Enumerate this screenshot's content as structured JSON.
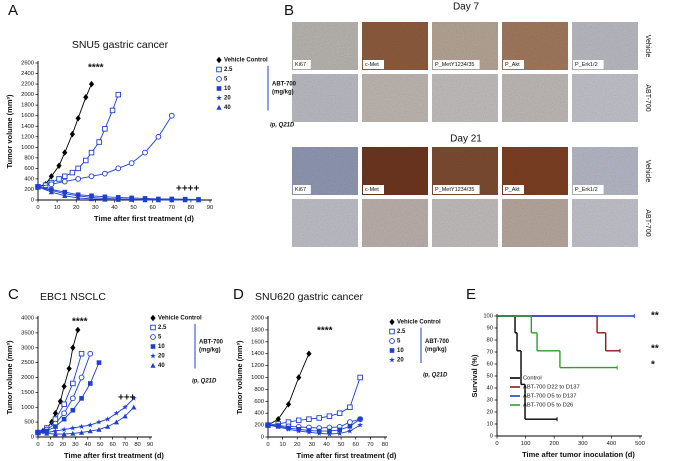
{
  "chart_data": [
    {
      "panel": "A",
      "type": "line",
      "title": "SNU5 gastric cancer",
      "x_label": "Time after first treatment (d)",
      "y_label": "Tumor volume (mm³)",
      "xlim": [
        0,
        90
      ],
      "xticks": [
        0,
        10,
        20,
        30,
        40,
        50,
        60,
        70,
        80,
        90
      ],
      "ylim": [
        0,
        2600
      ],
      "yticks": [
        0,
        200,
        400,
        600,
        800,
        1000,
        1200,
        1400,
        1600,
        1800,
        2000,
        2200,
        2400,
        2600
      ],
      "legend_group_label": [
        "ABT-700",
        "(mg/kg)"
      ],
      "dosing_note": "ip, Q21D",
      "annotations": [
        "****",
        "++++"
      ],
      "series": [
        {
          "name": "Vehicle Control",
          "color": "#000000",
          "marker": "diamond",
          "x": [
            0,
            4,
            7,
            11,
            14,
            18,
            21,
            25,
            28
          ],
          "values": [
            250,
            300,
            450,
            650,
            900,
            1250,
            1550,
            1950,
            2200
          ]
        },
        {
          "name": "2.5",
          "color": "#1f3fd0",
          "marker": "square-open",
          "x": [
            0,
            4,
            7,
            11,
            14,
            18,
            21,
            25,
            28,
            32,
            35,
            39,
            42
          ],
          "values": [
            250,
            280,
            330,
            400,
            450,
            520,
            600,
            750,
            900,
            1100,
            1350,
            1700,
            2000
          ]
        },
        {
          "name": "5",
          "color": "#1f3fd0",
          "marker": "circle-open",
          "x": [
            0,
            7,
            14,
            21,
            28,
            35,
            42,
            49,
            56,
            63,
            70
          ],
          "values": [
            250,
            300,
            350,
            400,
            450,
            500,
            600,
            700,
            900,
            1200,
            1600
          ]
        },
        {
          "name": "10",
          "color": "#1f3fd0",
          "marker": "square",
          "x": [
            0,
            7,
            14,
            21,
            28,
            35,
            42,
            49,
            56,
            63,
            70,
            77,
            84
          ],
          "values": [
            250,
            200,
            150,
            100,
            80,
            60,
            50,
            40,
            30,
            20,
            20,
            15,
            10
          ]
        },
        {
          "name": "20",
          "color": "#1f3fd0",
          "marker": "star",
          "x": [
            0,
            7,
            14,
            21,
            28,
            35,
            42,
            49,
            56,
            63,
            70,
            77,
            84
          ],
          "values": [
            250,
            180,
            120,
            80,
            50,
            30,
            20,
            15,
            10,
            10,
            5,
            5,
            5
          ]
        },
        {
          "name": "40",
          "color": "#1f3fd0",
          "marker": "triangle",
          "x": [
            0,
            7,
            14,
            21,
            28,
            35,
            42,
            49,
            56,
            63,
            70,
            77,
            84
          ],
          "values": [
            250,
            150,
            80,
            40,
            20,
            10,
            5,
            5,
            0,
            0,
            0,
            0,
            0
          ]
        }
      ]
    },
    {
      "panel": "C",
      "type": "line",
      "title": "EBC1 NSCLC",
      "x_label": "Time after first treatment (d)",
      "y_label": "Tumor volume (mm³)",
      "xlim": [
        0,
        90
      ],
      "xticks": [
        0,
        10,
        20,
        30,
        40,
        50,
        60,
        70,
        80,
        90
      ],
      "ylim": [
        0,
        4000
      ],
      "yticks": [
        0,
        500,
        1000,
        1500,
        2000,
        2500,
        3000,
        3500,
        4000
      ],
      "legend_group_label": [
        "ABT-700",
        "(mg/kg)"
      ],
      "dosing_note": "ip, Q21D",
      "annotations": [
        "****",
        "+++"
      ],
      "series": [
        {
          "name": "Vehicle Control",
          "color": "#000000",
          "marker": "diamond",
          "x": [
            0,
            4,
            7,
            11,
            14,
            18,
            21,
            25,
            28,
            32
          ],
          "values": [
            150,
            200,
            300,
            500,
            800,
            1200,
            1700,
            2300,
            3000,
            3600
          ]
        },
        {
          "name": "2.5",
          "color": "#1f3fd0",
          "marker": "square-open",
          "x": [
            0,
            7,
            14,
            21,
            28,
            35
          ],
          "values": [
            150,
            300,
            600,
            1100,
            1800,
            2800
          ]
        },
        {
          "name": "5",
          "color": "#1f3fd0",
          "marker": "circle-open",
          "x": [
            0,
            7,
            14,
            21,
            28,
            35,
            42
          ],
          "values": [
            150,
            250,
            450,
            800,
            1300,
            2000,
            2800
          ]
        },
        {
          "name": "10",
          "color": "#1f3fd0",
          "marker": "square",
          "x": [
            0,
            7,
            14,
            21,
            28,
            35,
            42,
            49
          ],
          "values": [
            150,
            200,
            350,
            600,
            900,
            1300,
            1800,
            2500
          ]
        },
        {
          "name": "20",
          "color": "#1f3fd0",
          "marker": "star",
          "x": [
            0,
            7,
            14,
            21,
            28,
            35,
            42,
            49,
            56,
            63,
            70,
            77
          ],
          "values": [
            150,
            150,
            200,
            250,
            300,
            350,
            400,
            500,
            600,
            800,
            1000,
            1300
          ]
        },
        {
          "name": "40",
          "color": "#1f3fd0",
          "marker": "triangle",
          "x": [
            0,
            7,
            14,
            21,
            28,
            35,
            42,
            49,
            56,
            63,
            70,
            77
          ],
          "values": [
            150,
            120,
            100,
            100,
            120,
            150,
            200,
            250,
            350,
            500,
            700,
            1000
          ]
        }
      ]
    },
    {
      "panel": "D",
      "type": "line",
      "title": "SNU620 gastric cancer",
      "x_label": "Time after first treatment (d)",
      "y_label": "Tumor volume (mm³)",
      "xlim": [
        0,
        80
      ],
      "xticks": [
        0,
        10,
        20,
        30,
        40,
        50,
        60,
        70,
        80
      ],
      "ylim": [
        0,
        2000
      ],
      "yticks": [
        0,
        200,
        400,
        600,
        800,
        1000,
        1200,
        1400,
        1600,
        1800,
        2000
      ],
      "legend_group_label": [
        "ABT-700",
        "(mg/kg)"
      ],
      "dosing_note": "ip, Q21D",
      "annotations": [
        "****"
      ],
      "series": [
        {
          "name": "Vehicle Control",
          "color": "#000000",
          "marker": "diamond",
          "x": [
            0,
            7,
            14,
            21,
            28
          ],
          "values": [
            200,
            300,
            550,
            1000,
            1400
          ]
        },
        {
          "name": "2.5",
          "color": "#1f3fd0",
          "marker": "square-open",
          "x": [
            0,
            7,
            14,
            21,
            28,
            35,
            42,
            49,
            56,
            63
          ],
          "values": [
            200,
            220,
            250,
            280,
            300,
            320,
            350,
            400,
            500,
            1000
          ]
        },
        {
          "name": "5",
          "color": "#1f3fd0",
          "marker": "circle-open",
          "x": [
            0,
            7,
            14,
            21,
            28,
            35,
            42,
            49,
            56,
            63
          ],
          "values": [
            200,
            190,
            180,
            170,
            160,
            150,
            160,
            170,
            250,
            300
          ]
        },
        {
          "name": "10",
          "color": "#1f3fd0",
          "marker": "square",
          "x": [
            0,
            7,
            14,
            21,
            28,
            35,
            42,
            49,
            56,
            63
          ],
          "values": [
            200,
            180,
            150,
            130,
            110,
            100,
            100,
            120,
            180,
            300
          ]
        },
        {
          "name": "20",
          "color": "#1f3fd0",
          "marker": "star",
          "x": [
            0,
            7,
            14,
            21,
            28,
            35,
            42,
            49,
            56,
            63
          ],
          "values": [
            200,
            170,
            130,
            100,
            80,
            60,
            50,
            60,
            100,
            200
          ]
        }
      ]
    },
    {
      "panel": "E",
      "type": "step",
      "x_label": "Time after tumor inoculation (d)",
      "y_label": "Survival (%)",
      "xlim": [
        0,
        500
      ],
      "xticks": [
        0,
        100,
        200,
        300,
        400,
        500
      ],
      "ylim": [
        0,
        100
      ],
      "yticks": [
        0,
        10,
        20,
        30,
        40,
        50,
        60,
        70,
        80,
        90,
        100
      ],
      "annotations": [
        "**",
        "**",
        "*"
      ],
      "series": [
        {
          "name": "Control",
          "color": "#000000",
          "x": [
            0,
            63,
            70,
            84,
            98,
            210
          ],
          "values": [
            100,
            86,
            71,
            43,
            14,
            14
          ]
        },
        {
          "name": "ABT-700 D22 to D137",
          "color": "#8b1a1a",
          "x": [
            0,
            350,
            380,
            430
          ],
          "values": [
            100,
            86,
            71,
            71
          ]
        },
        {
          "name": "ABT-700 D5 to D137",
          "color": "#1f3fd0",
          "x": [
            0,
            480
          ],
          "values": [
            100,
            100
          ]
        },
        {
          "name": "ABT-700 D5 to D26",
          "color": "#2e9e2e",
          "x": [
            0,
            120,
            140,
            180,
            220,
            270,
            420
          ],
          "values": [
            100,
            86,
            71,
            71,
            57,
            57,
            57
          ]
        }
      ]
    }
  ],
  "image_panel": {
    "letter": "B",
    "days": [
      "Day 7",
      "Day 21"
    ],
    "stains": [
      "Ki67",
      "c-Met",
      "P_MetY1234/35",
      "P_Akt",
      "P_Erk1/2"
    ],
    "row_labels": [
      "Vehicle",
      "ABT-700"
    ]
  }
}
